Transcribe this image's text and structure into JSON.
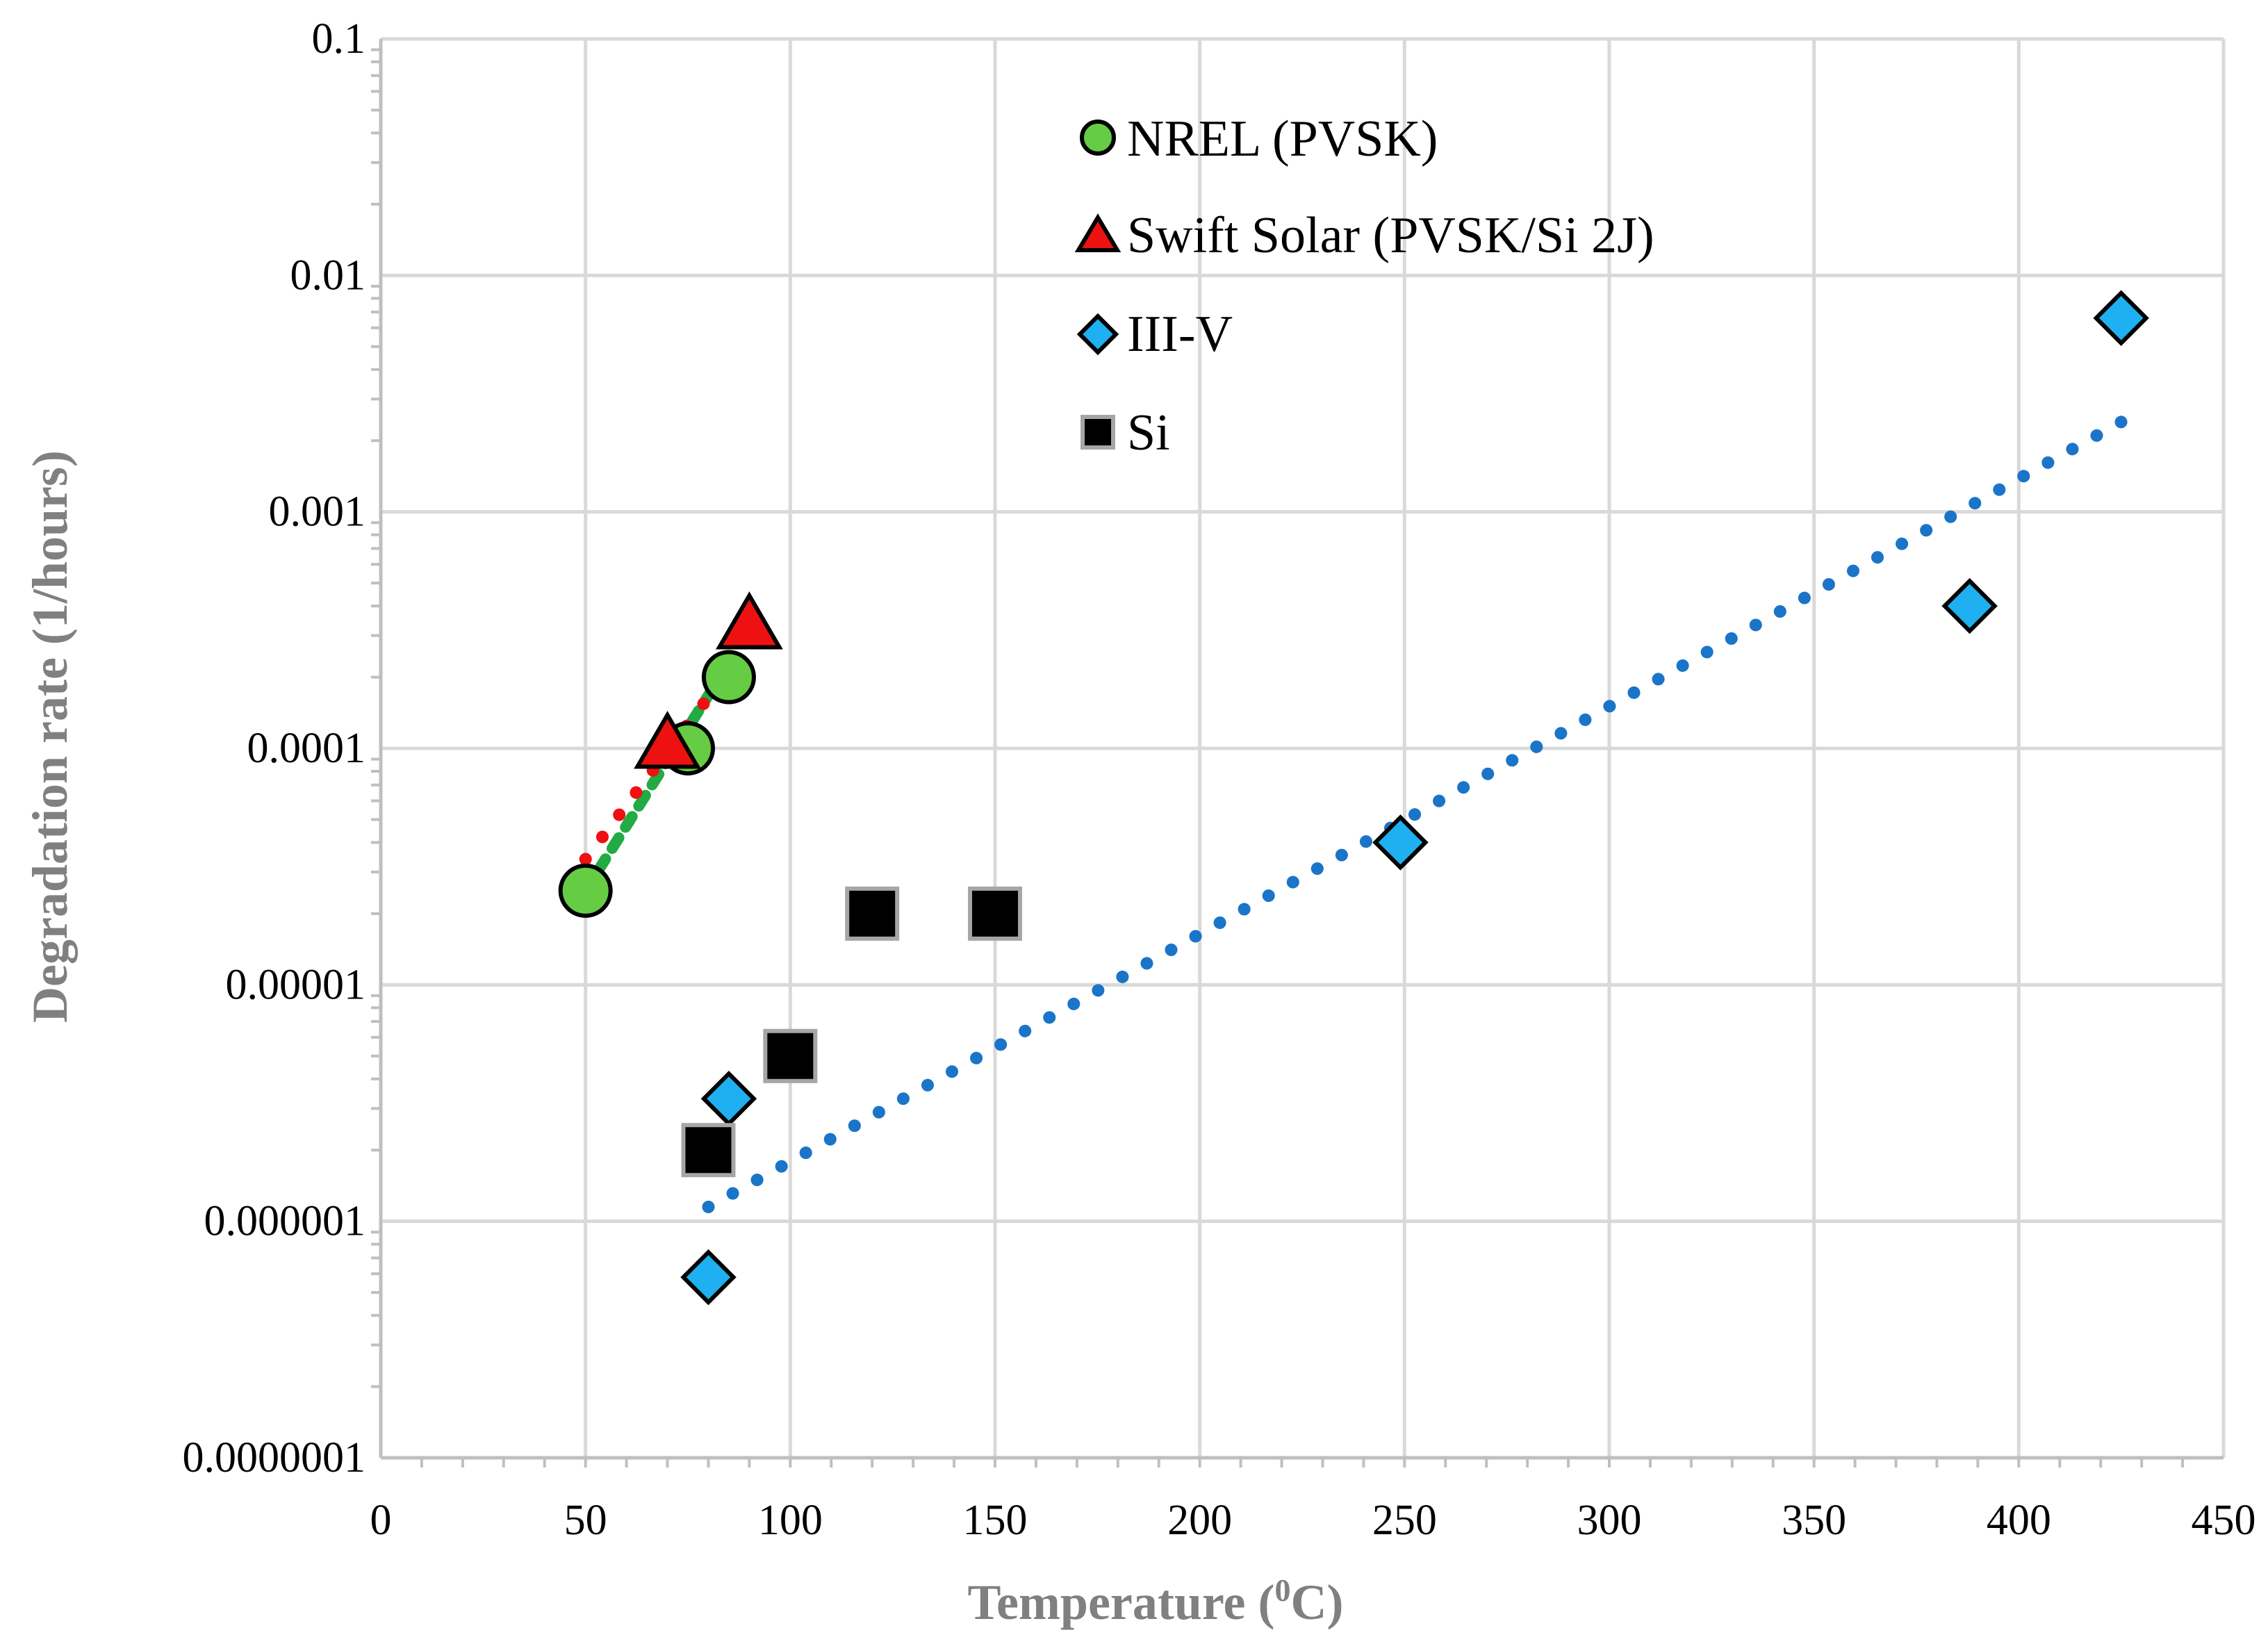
{
  "chart_data": {
    "type": "scatter",
    "title": "",
    "xlabel": "Temperature (",
    "xlabel_superscript": "0",
    "xlabel_suffix": "C)",
    "ylabel": "Degradation rate (1/hours)",
    "xlim": [
      0,
      450
    ],
    "ylim": [
      1e-07,
      0.1
    ],
    "yscale": "log",
    "grid": true,
    "x_ticks": [
      "0",
      "50",
      "100",
      "150",
      "200",
      "250",
      "300",
      "350",
      "400",
      "450"
    ],
    "y_ticks": [
      "0.0000001",
      "0.000001",
      "0.00001",
      "0.0001",
      "0.001",
      "0.01",
      "0.1"
    ],
    "legend_position": "top-center",
    "series": [
      {
        "name": "NREL (PVSK)",
        "marker": "circle",
        "color": "#66cc44",
        "points": [
          [
            50,
            2.5e-05
          ],
          [
            75,
            0.0001
          ],
          [
            85,
            0.0002
          ]
        ],
        "trendline": {
          "color": "#22aa44",
          "style": "dashed",
          "x": [
            50,
            85
          ],
          "y": [
            2.5e-05,
            0.00023
          ]
        }
      },
      {
        "name": "Swift Solar (PVSK/Si 2J)",
        "marker": "triangle",
        "color": "#ee1111",
        "points": [
          [
            70,
            0.0001
          ],
          [
            90,
            0.00032
          ]
        ],
        "trendline": {
          "color": "#ee1111",
          "style": "dotted",
          "x": [
            50,
            88
          ],
          "y": [
            3.4e-05,
            0.00025
          ]
        }
      },
      {
        "name": "III-V",
        "marker": "diamond",
        "color": "#1eb0f0",
        "points": [
          [
            80,
            5.8e-07
          ],
          [
            85,
            3.3e-06
          ],
          [
            249,
            4e-05
          ],
          [
            388,
            0.0004
          ],
          [
            425,
            0.0066
          ]
        ],
        "trendline": {
          "color": "#1a75c8",
          "style": "dotted",
          "x": [
            80,
            425
          ],
          "y": [
            1.15e-06,
            0.0024
          ]
        }
      },
      {
        "name": "Si",
        "marker": "square",
        "color": "#000000",
        "points": [
          [
            80,
            2e-06
          ],
          [
            100,
            5e-06
          ],
          [
            120,
            2e-05
          ],
          [
            150,
            2e-05
          ]
        ]
      }
    ]
  }
}
